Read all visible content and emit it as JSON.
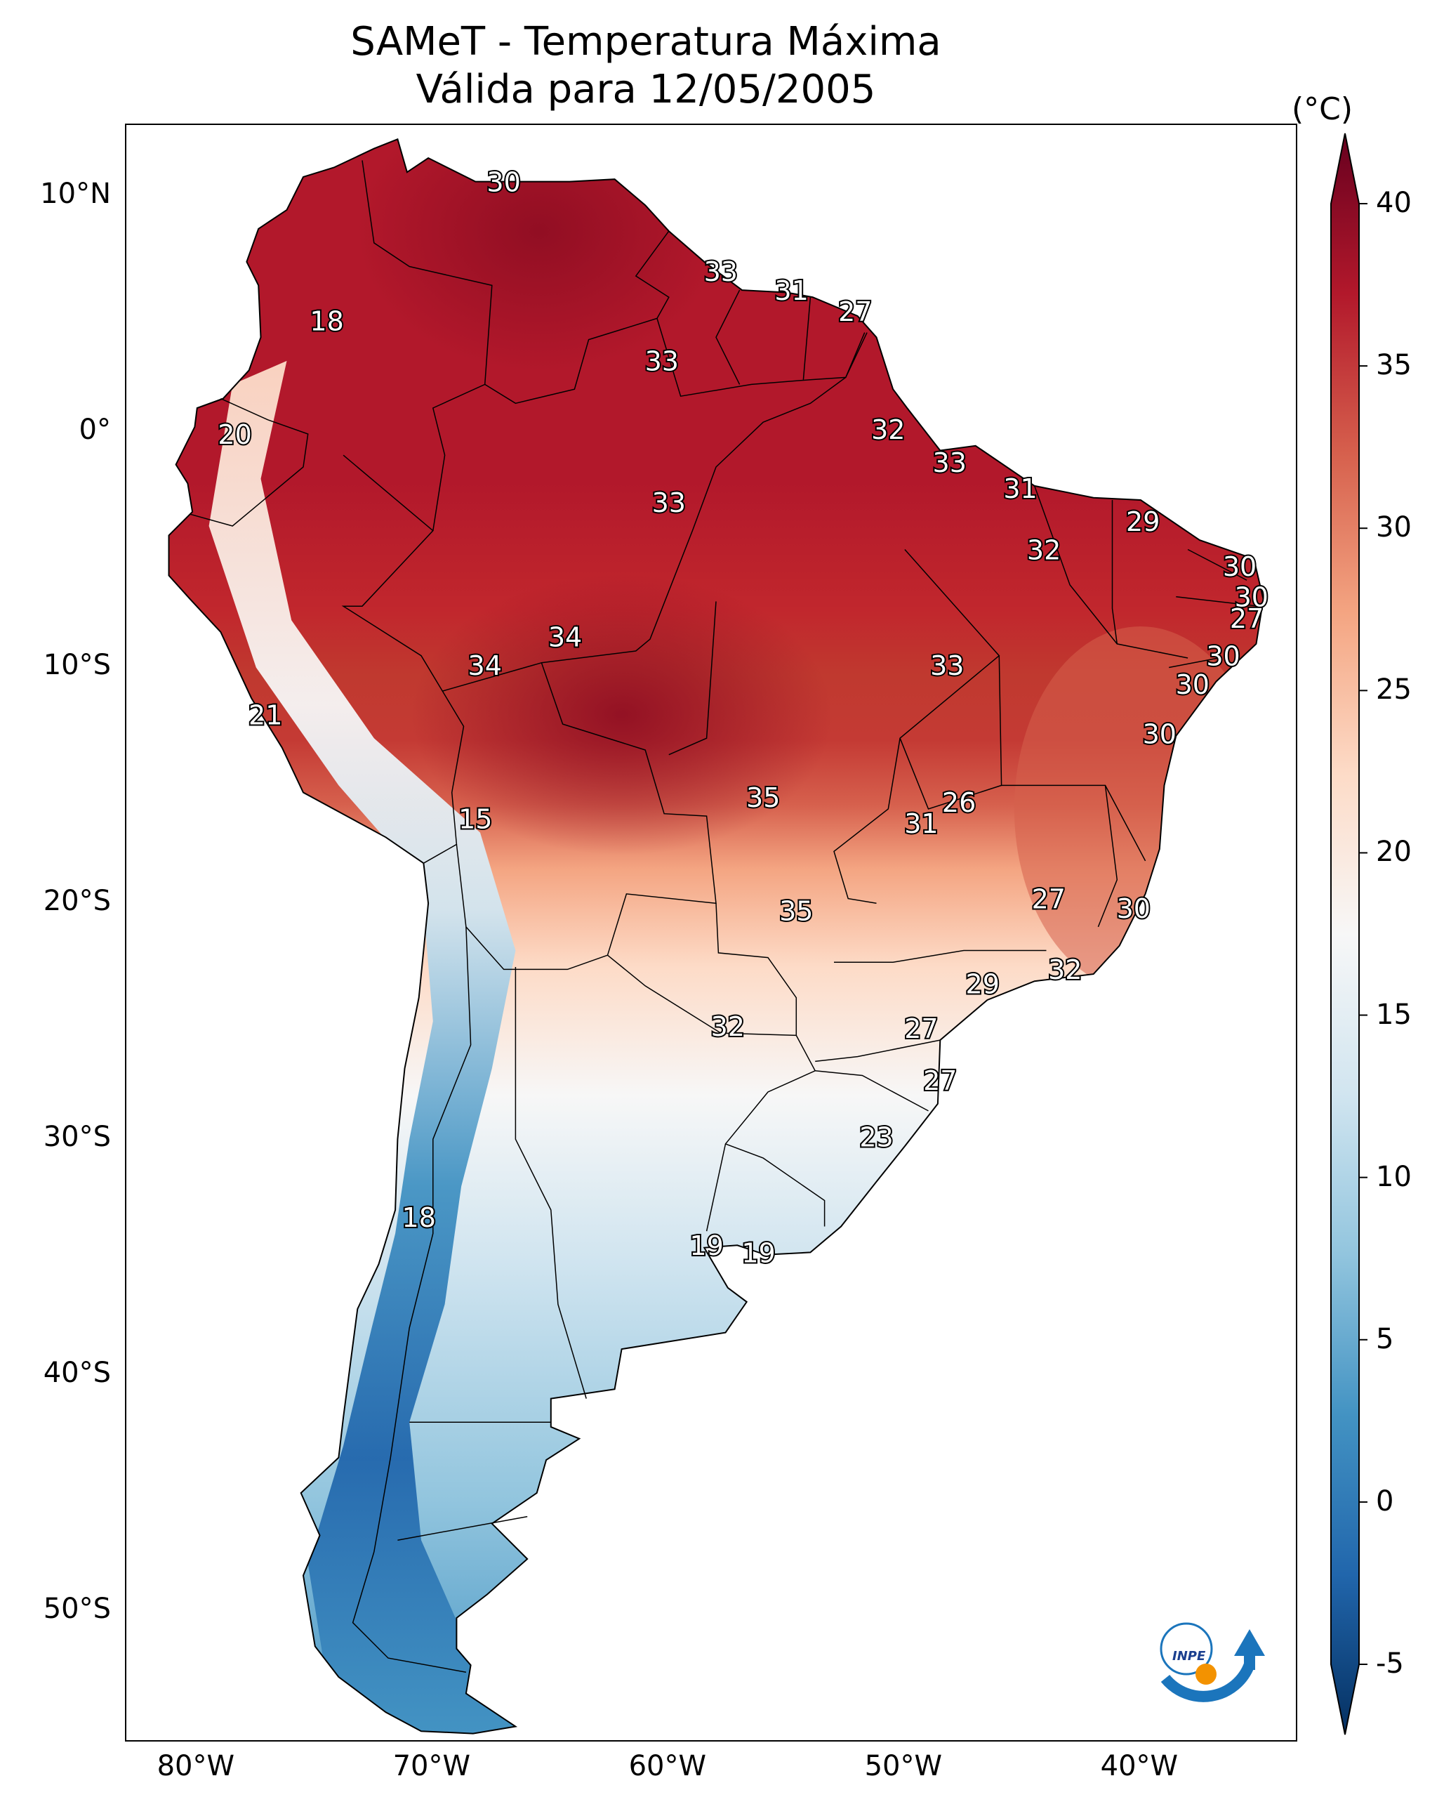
{
  "title": "SAMeT - Temperatura Máxima",
  "subtitle": "Válida para 12/05/2005",
  "units": "(°C)",
  "colorbar": {
    "min": -5,
    "max": 40,
    "ticks": [
      "40",
      "35",
      "30",
      "25",
      "20",
      "15",
      "10",
      "5",
      "0",
      "-5"
    ],
    "colors": [
      "#053061",
      "#2166ac",
      "#4393c3",
      "#92c5de",
      "#d1e5f0",
      "#f7f7f7",
      "#fddbc7",
      "#f4a582",
      "#d6604d",
      "#b2182b",
      "#67001f"
    ]
  },
  "lat_labels": [
    "10°N",
    "0°",
    "10°S",
    "20°S",
    "30°S",
    "40°S",
    "50°S"
  ],
  "lon_labels": [
    "80°W",
    "70°W",
    "60°W",
    "50°W",
    "40°W"
  ],
  "station_labels": [
    {
      "text": "30",
      "lon": -67.0,
      "lat": 10.5
    },
    {
      "text": "33",
      "lon": -57.8,
      "lat": 6.7
    },
    {
      "text": "31",
      "lon": -54.8,
      "lat": 5.9
    },
    {
      "text": "27",
      "lon": -52.1,
      "lat": 5.0
    },
    {
      "text": "18",
      "lon": -74.5,
      "lat": 4.6
    },
    {
      "text": "33",
      "lon": -60.3,
      "lat": 2.9
    },
    {
      "text": "20",
      "lon": -78.4,
      "lat": -0.2
    },
    {
      "text": "32",
      "lon": -50.7,
      "lat": 0.0
    },
    {
      "text": "33",
      "lon": -48.1,
      "lat": -1.4
    },
    {
      "text": "31",
      "lon": -45.1,
      "lat": -2.5
    },
    {
      "text": "33",
      "lon": -60.0,
      "lat": -3.1
    },
    {
      "text": "29",
      "lon": -39.9,
      "lat": -3.9
    },
    {
      "text": "32",
      "lon": -44.1,
      "lat": -5.1
    },
    {
      "text": "30",
      "lon": -35.8,
      "lat": -5.8
    },
    {
      "text": "30",
      "lon": -35.3,
      "lat": -7.1
    },
    {
      "text": "27",
      "lon": -35.5,
      "lat": -8.0
    },
    {
      "text": "34",
      "lon": -64.4,
      "lat": -8.8
    },
    {
      "text": "34",
      "lon": -67.8,
      "lat": -10.0
    },
    {
      "text": "33",
      "lon": -48.2,
      "lat": -10.0
    },
    {
      "text": "30",
      "lon": -36.5,
      "lat": -9.6
    },
    {
      "text": "30",
      "lon": -37.8,
      "lat": -10.8
    },
    {
      "text": "21",
      "lon": -77.1,
      "lat": -12.1
    },
    {
      "text": "30",
      "lon": -39.2,
      "lat": -12.9
    },
    {
      "text": "26",
      "lon": -47.7,
      "lat": -15.8
    },
    {
      "text": "35",
      "lon": -56.0,
      "lat": -15.6
    },
    {
      "text": "31",
      "lon": -49.3,
      "lat": -16.7
    },
    {
      "text": "15",
      "lon": -68.2,
      "lat": -16.5
    },
    {
      "text": "27",
      "lon": -43.9,
      "lat": -19.9
    },
    {
      "text": "30",
      "lon": -40.3,
      "lat": -20.3
    },
    {
      "text": "35",
      "lon": -54.6,
      "lat": -20.4
    },
    {
      "text": "32",
      "lon": -43.2,
      "lat": -22.9
    },
    {
      "text": "29",
      "lon": -46.7,
      "lat": -23.5
    },
    {
      "text": "32",
      "lon": -57.5,
      "lat": -25.3
    },
    {
      "text": "27",
      "lon": -49.3,
      "lat": -25.4
    },
    {
      "text": "27",
      "lon": -48.5,
      "lat": -27.6
    },
    {
      "text": "23",
      "lon": -51.2,
      "lat": -30.0
    },
    {
      "text": "18",
      "lon": -70.6,
      "lat": -33.4
    },
    {
      "text": "19",
      "lon": -58.4,
      "lat": -34.6
    },
    {
      "text": "19",
      "lon": -56.2,
      "lat": -34.9
    }
  ],
  "logo_text": "INPE"
}
